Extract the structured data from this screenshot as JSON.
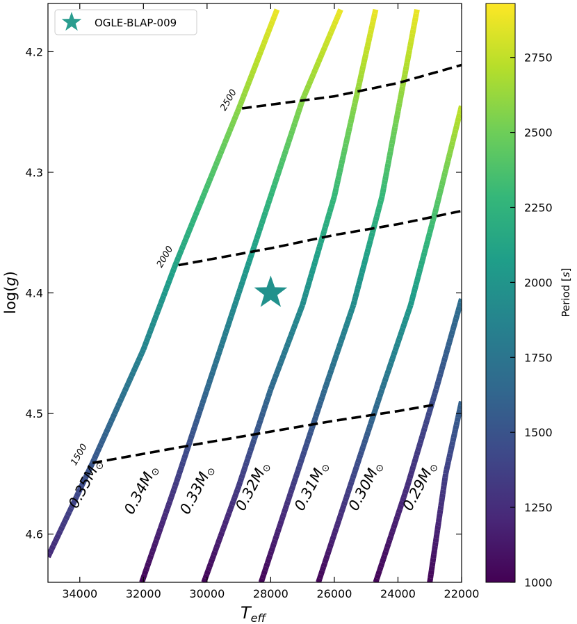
{
  "chart_data": {
    "type": "line",
    "xlabel_main": "T",
    "xlabel_sub": "eff",
    "ylabel_pre": "log(",
    "ylabel_var": "g",
    "ylabel_post": ")",
    "xlim": [
      35000,
      22000
    ],
    "ylim": [
      4.64,
      4.16
    ],
    "x_inverted": true,
    "y_inverted": true,
    "x_ticks": [
      34000,
      32000,
      30000,
      28000,
      26000,
      24000,
      22000
    ],
    "y_ticks": [
      4.2,
      4.3,
      4.4,
      4.5,
      4.6
    ],
    "y_tick_labels": [
      "4.2",
      "4.3",
      "4.4",
      "4.5",
      "4.6"
    ],
    "legend": {
      "placement": "top-left",
      "entries": [
        {
          "label": "OGLE-BLAP-009",
          "marker": "star",
          "color": "#2a9d8f"
        }
      ]
    },
    "star": {
      "label": "OGLE-BLAP-009",
      "teff": 28000,
      "logg": 4.4,
      "color": "#21918c"
    },
    "tracks": [
      {
        "label": "0.35",
        "points": [
          [
            35000,
            4.619
          ],
          [
            33600,
            4.541
          ],
          [
            32000,
            4.447
          ],
          [
            31000,
            4.377
          ],
          [
            29000,
            4.247
          ],
          [
            27800,
            4.165
          ]
        ],
        "period_range": [
          1230,
          2880
        ]
      },
      {
        "label": "0.34",
        "points": [
          [
            32050,
            4.64
          ],
          [
            31000,
            4.56
          ],
          [
            29000,
            4.4
          ],
          [
            28000,
            4.32
          ],
          [
            27000,
            4.24
          ],
          [
            25800,
            4.165
          ]
        ],
        "period_range": [
          1020,
          2880
        ]
      },
      {
        "label": "0.33",
        "points": [
          [
            30100,
            4.64
          ],
          [
            29000,
            4.56
          ],
          [
            28000,
            4.48
          ],
          [
            27000,
            4.41
          ],
          [
            26000,
            4.32
          ],
          [
            24700,
            4.165
          ]
        ],
        "period_range": [
          1020,
          2880
        ]
      },
      {
        "label": "0.32",
        "points": [
          [
            28300,
            4.64
          ],
          [
            27300,
            4.56
          ],
          [
            26300,
            4.48
          ],
          [
            25400,
            4.41
          ],
          [
            24500,
            4.32
          ],
          [
            23400,
            4.165
          ]
        ],
        "period_range": [
          1020,
          2880
        ]
      },
      {
        "label": "0.31",
        "points": [
          [
            26500,
            4.64
          ],
          [
            25500,
            4.56
          ],
          [
            24500,
            4.48
          ],
          [
            23600,
            4.41
          ],
          [
            22800,
            4.33
          ],
          [
            22000,
            4.245
          ]
        ],
        "period_range": [
          1020,
          2750
        ]
      },
      {
        "label": "0.30",
        "points": [
          [
            24700,
            4.64
          ],
          [
            23700,
            4.56
          ],
          [
            22800,
            4.48
          ],
          [
            22000,
            4.405
          ]
        ],
        "period_range": [
          1020,
          1700
        ]
      },
      {
        "label": "0.29",
        "points": [
          [
            23000,
            4.64
          ],
          [
            22500,
            4.55
          ],
          [
            22000,
            4.49
          ]
        ],
        "period_range": [
          1020,
          1600
        ]
      }
    ],
    "mass_label_unit": "M",
    "mass_labels": [
      {
        "text": "0.35",
        "teff": 33700,
        "logg": 4.56
      },
      {
        "text": "0.34",
        "teff": 31950,
        "logg": 4.565
      },
      {
        "text": "0.33",
        "teff": 30200,
        "logg": 4.565
      },
      {
        "text": "0.32",
        "teff": 28450,
        "logg": 4.562
      },
      {
        "text": "0.31",
        "teff": 26600,
        "logg": 4.562
      },
      {
        "text": "0.30",
        "teff": 24900,
        "logg": 4.562
      },
      {
        "text": "0.29",
        "teff": 23200,
        "logg": 4.562
      }
    ],
    "period_lines": [
      {
        "label": "1500",
        "points": [
          [
            33600,
            4.541
          ],
          [
            30000,
            4.524
          ],
          [
            26000,
            4.506
          ],
          [
            24000,
            4.498
          ],
          [
            22900,
            4.493
          ]
        ]
      },
      {
        "label": "2000",
        "points": [
          [
            30900,
            4.377
          ],
          [
            28000,
            4.363
          ],
          [
            26000,
            4.352
          ],
          [
            24000,
            4.343
          ],
          [
            22000,
            4.332
          ]
        ]
      },
      {
        "label": "2500",
        "points": [
          [
            28900,
            4.247
          ],
          [
            26000,
            4.237
          ],
          [
            24000,
            4.226
          ],
          [
            22000,
            4.211
          ]
        ]
      }
    ],
    "colorbar": {
      "label_pre": "Period [",
      "label_var": "s",
      "label_post": "]",
      "range": [
        1000,
        2930
      ],
      "ticks": [
        1000,
        1250,
        1500,
        1750,
        2000,
        2250,
        2500,
        2750
      ],
      "colormap": "viridis",
      "stops": [
        "#440154",
        "#482878",
        "#3e4989",
        "#31688e",
        "#26828e",
        "#1f9e89",
        "#35b779",
        "#6ece58",
        "#b5de2b",
        "#fde725"
      ]
    }
  }
}
